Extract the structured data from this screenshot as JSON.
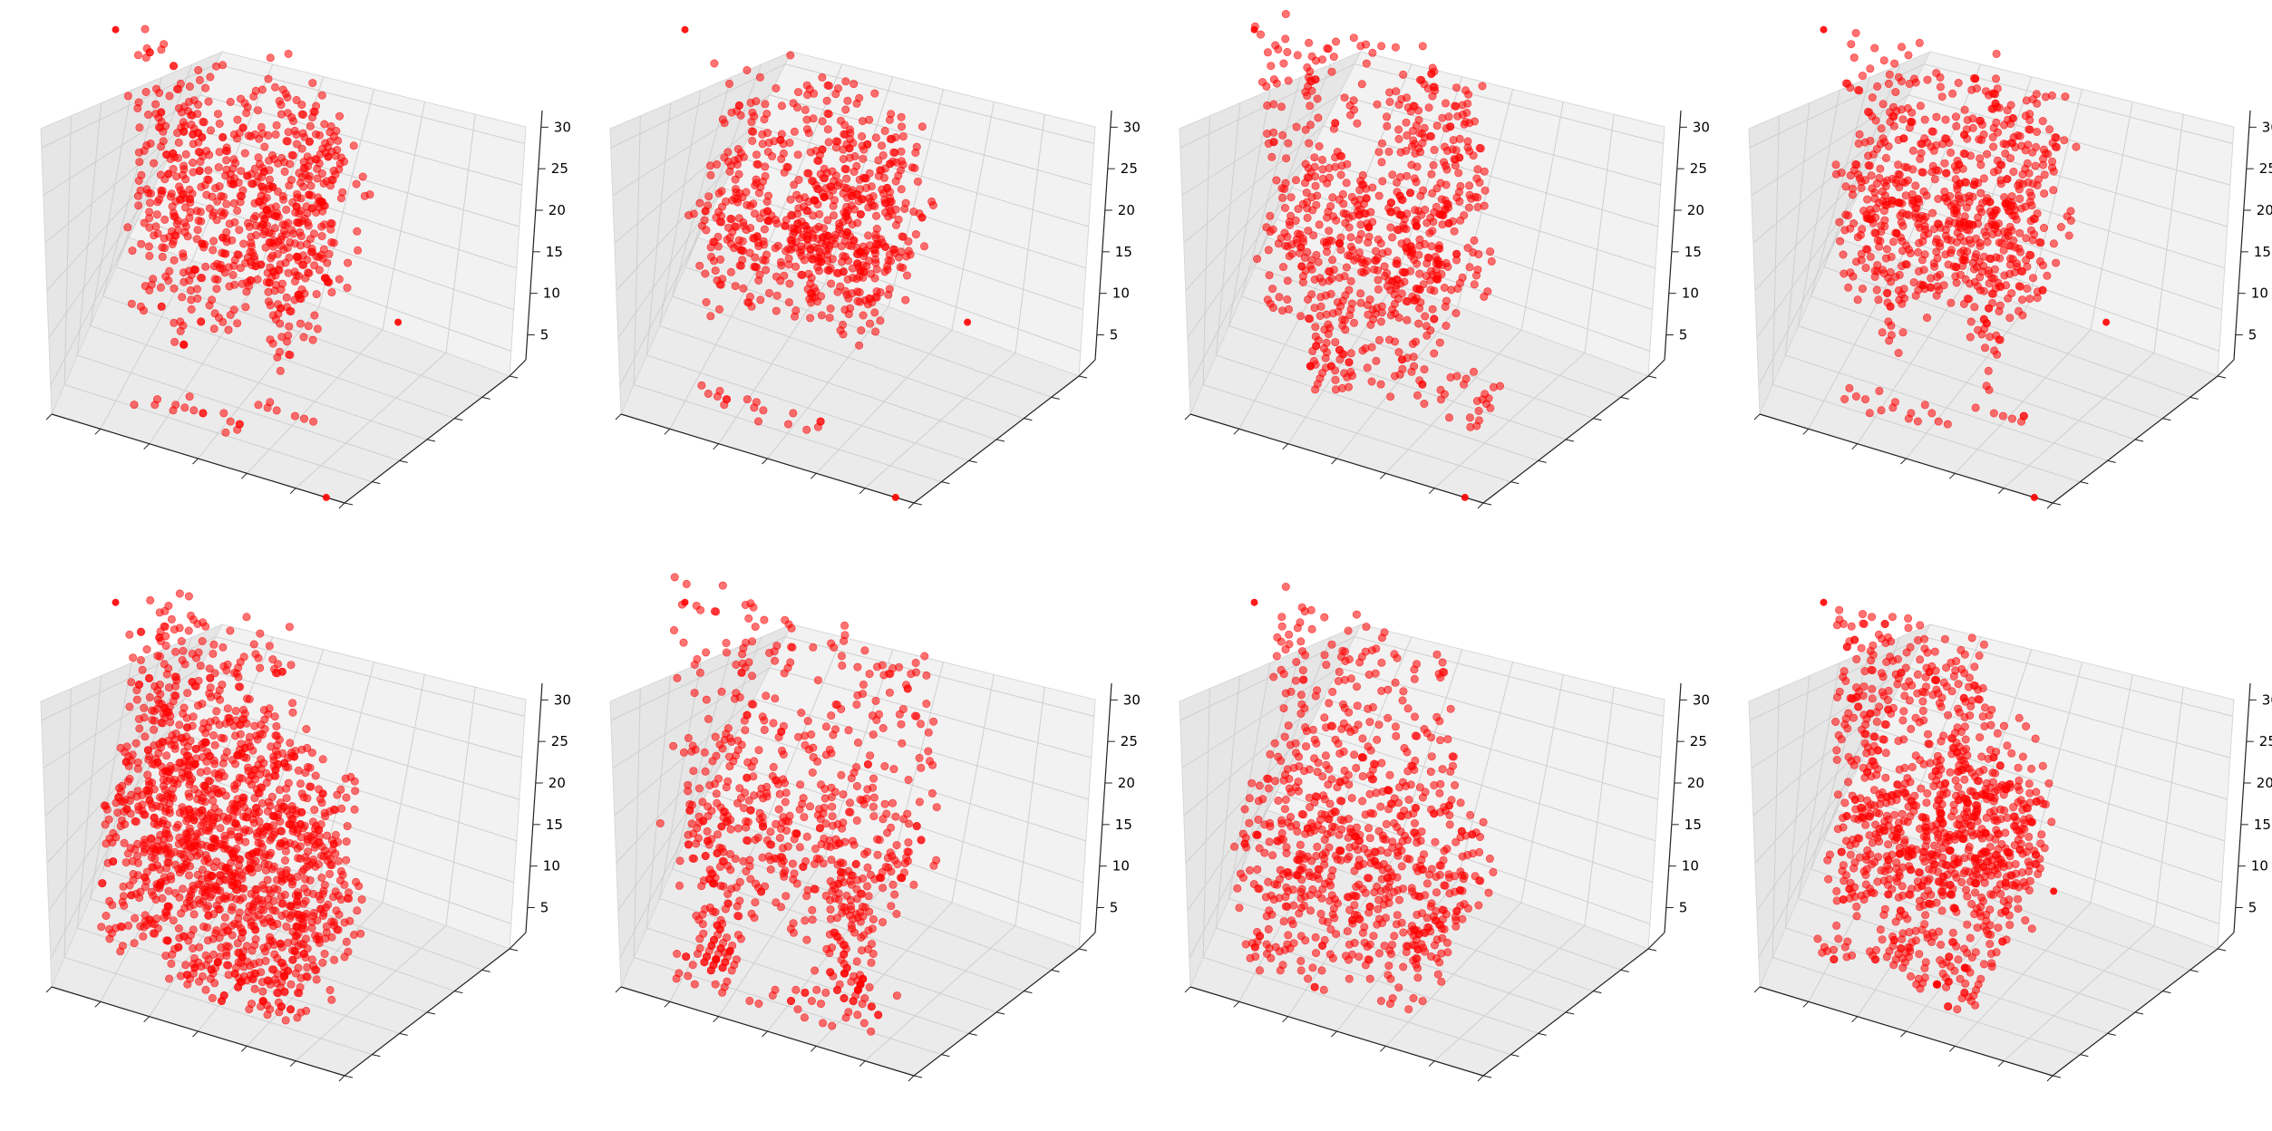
{
  "figure": {
    "background": "#ffffff",
    "rows": 2,
    "cols": 4
  },
  "style": {
    "point_color": "#ff0000",
    "pane_colors": [
      "#f2f2f2",
      "#e6e6e6",
      "#ebebeb"
    ],
    "grid_color": "#cfcfcf"
  },
  "chart_data": [
    {
      "type": "scatter3d",
      "panel": 1,
      "zticks": [
        "5",
        "10",
        "15",
        "20",
        "25",
        "30"
      ],
      "zlim": [
        2,
        32
      ],
      "xticklabels": [],
      "yticklabels": [],
      "clusters": [
        {
          "center": [
            16,
            16,
            17
          ],
          "size": [
            10,
            8,
            7
          ],
          "n": 420
        },
        {
          "center": [
            16,
            22,
            25
          ],
          "size": [
            12,
            3,
            5
          ],
          "n": 120
        },
        {
          "center": [
            22,
            20,
            20
          ],
          "size": [
            6,
            10,
            8
          ],
          "n": 140
        },
        {
          "center": [
            12,
            10,
            9
          ],
          "size": [
            1,
            1,
            4
          ],
          "n": 12
        },
        {
          "center": [
            22,
            12,
            9
          ],
          "size": [
            1,
            1,
            5
          ],
          "n": 14
        },
        {
          "center": [
            14,
            6,
            3
          ],
          "size": [
            6,
            2,
            0.5
          ],
          "n": 16
        },
        {
          "center": [
            23,
            10,
            3
          ],
          "size": [
            3,
            1,
            0.5
          ],
          "n": 7
        }
      ],
      "outliers": [
        [
          0,
          30,
          25
        ],
        [
          30,
          0,
          2
        ],
        [
          30,
          30,
          3
        ]
      ]
    },
    {
      "type": "scatter3d",
      "panel": 2,
      "zticks": [
        "5",
        "10",
        "15",
        "20",
        "25",
        "30"
      ],
      "zlim": [
        2,
        32
      ],
      "xticklabels": [],
      "yticklabels": [],
      "clusters": [
        {
          "center": [
            16,
            16,
            16
          ],
          "size": [
            10,
            8,
            6
          ],
          "n": 420
        },
        {
          "center": [
            16,
            22,
            25
          ],
          "size": [
            10,
            3,
            4
          ],
          "n": 90
        },
        {
          "center": [
            22,
            20,
            19
          ],
          "size": [
            6,
            9,
            7
          ],
          "n": 140
        },
        {
          "center": [
            14,
            6,
            3
          ],
          "size": [
            7,
            2,
            0.5
          ],
          "n": 18
        }
      ],
      "outliers": [
        [
          0,
          30,
          25
        ],
        [
          30,
          0,
          2
        ],
        [
          30,
          30,
          3
        ]
      ]
    },
    {
      "type": "scatter3d",
      "panel": 3,
      "zticks": [
        "5",
        "10",
        "15",
        "20",
        "25",
        "30"
      ],
      "zlim": [
        2,
        32
      ],
      "xticklabels": [],
      "yticklabels": [],
      "clusters": [
        {
          "center": [
            15,
            15,
            14
          ],
          "size": [
            10,
            8,
            5
          ],
          "n": 300
        },
        {
          "center": [
            15,
            22,
            23
          ],
          "size": [
            12,
            3,
            9
          ],
          "n": 200
        },
        {
          "center": [
            22,
            22,
            18
          ],
          "size": [
            5,
            8,
            10
          ],
          "n": 120
        },
        {
          "center": [
            12,
            12,
            6
          ],
          "size": [
            2,
            2,
            6
          ],
          "n": 40
        },
        {
          "center": [
            20,
            14,
            4
          ],
          "size": [
            10,
            5,
            1
          ],
          "n": 60
        }
      ],
      "outliers": [
        [
          0,
          30,
          25
        ],
        [
          30,
          0,
          2
        ]
      ]
    },
    {
      "type": "scatter3d",
      "panel": 4,
      "zticks": [
        "5",
        "10",
        "15",
        "20",
        "25",
        "30"
      ],
      "zlim": [
        2,
        32
      ],
      "xticklabels": [],
      "yticklabels": [],
      "clusters": [
        {
          "center": [
            16,
            16,
            17
          ],
          "size": [
            10,
            8,
            7
          ],
          "n": 420
        },
        {
          "center": [
            16,
            22,
            25
          ],
          "size": [
            12,
            3,
            5
          ],
          "n": 120
        },
        {
          "center": [
            22,
            20,
            20
          ],
          "size": [
            6,
            10,
            8
          ],
          "n": 140
        },
        {
          "center": [
            12,
            10,
            9
          ],
          "size": [
            1,
            1,
            4
          ],
          "n": 12
        },
        {
          "center": [
            22,
            12,
            9
          ],
          "size": [
            1,
            1,
            5
          ],
          "n": 14
        },
        {
          "center": [
            14,
            6,
            3
          ],
          "size": [
            6,
            2,
            0.5
          ],
          "n": 16
        },
        {
          "center": [
            23,
            10,
            3
          ],
          "size": [
            3,
            1,
            0.5
          ],
          "n": 7
        }
      ],
      "outliers": [
        [
          0,
          30,
          25
        ],
        [
          30,
          0,
          2
        ],
        [
          30,
          30,
          3
        ]
      ]
    },
    {
      "type": "scatter3d",
      "panel": 5,
      "zticks": [
        "5",
        "10",
        "15",
        "20",
        "25",
        "30"
      ],
      "zlim": [
        2,
        32
      ],
      "xticklabels": [],
      "yticklabels": [],
      "clusters": [
        {
          "center": [
            16,
            15,
            12
          ],
          "size": [
            12,
            10,
            10
          ],
          "n": 1100
        },
        {
          "center": [
            12,
            24,
            22
          ],
          "size": [
            8,
            4,
            8
          ],
          "n": 220
        },
        {
          "center": [
            18,
            10,
            2
          ],
          "size": [
            6,
            4,
            3
          ],
          "n": 80
        }
      ],
      "outliers": [
        [
          0,
          30,
          25
        ]
      ]
    },
    {
      "type": "scatter3d",
      "panel": 6,
      "zticks": [
        "5",
        "10",
        "15",
        "20",
        "25",
        "30"
      ],
      "zlim": [
        2,
        32
      ],
      "xticklabels": [],
      "yticklabels": [],
      "clusters": [
        {
          "center": [
            15,
            22,
            20
          ],
          "size": [
            14,
            3,
            12
          ],
          "n": 260
        },
        {
          "center": [
            15,
            15,
            12
          ],
          "size": [
            12,
            10,
            4
          ],
          "n": 260
        },
        {
          "center": [
            8,
            10,
            5
          ],
          "size": [
            2,
            2,
            8
          ],
          "n": 70
        },
        {
          "center": [
            22,
            12,
            5
          ],
          "size": [
            2,
            2,
            8
          ],
          "n": 70
        },
        {
          "center": [
            15,
            8,
            1
          ],
          "size": [
            12,
            4,
            1
          ],
          "n": 60
        }
      ],
      "outliers": [
        [
          0,
          30,
          25
        ]
      ]
    },
    {
      "type": "scatter3d",
      "panel": 7,
      "zticks": [
        "5",
        "10",
        "15",
        "20",
        "25",
        "30"
      ],
      "zlim": [
        2,
        32
      ],
      "xticklabels": [],
      "yticklabels": [],
      "clusters": [
        {
          "center": [
            15,
            15,
            11
          ],
          "size": [
            12,
            10,
            4
          ],
          "n": 420
        },
        {
          "center": [
            14,
            22,
            22
          ],
          "size": [
            10,
            3,
            9
          ],
          "n": 200
        },
        {
          "center": [
            16,
            12,
            4
          ],
          "size": [
            8,
            6,
            4
          ],
          "n": 110
        },
        {
          "center": [
            6,
            8,
            3
          ],
          "size": [
            2,
            2,
            1
          ],
          "n": 20
        }
      ],
      "outliers": [
        [
          0,
          30,
          25
        ]
      ]
    },
    {
      "type": "scatter3d",
      "panel": 8,
      "zticks": [
        "5",
        "10",
        "15",
        "20",
        "25",
        "30"
      ],
      "zlim": [
        2,
        32
      ],
      "xticklabels": [],
      "yticklabels": [],
      "clusters": [
        {
          "center": [
            16,
            15,
            12
          ],
          "size": [
            10,
            9,
            5
          ],
          "n": 520
        },
        {
          "center": [
            12,
            22,
            22
          ],
          "size": [
            8,
            3,
            8
          ],
          "n": 240
        },
        {
          "center": [
            20,
            20,
            16
          ],
          "size": [
            5,
            8,
            6
          ],
          "n": 140
        },
        {
          "center": [
            16,
            10,
            3
          ],
          "size": [
            6,
            4,
            3
          ],
          "n": 90
        },
        {
          "center": [
            6,
            8,
            3
          ],
          "size": [
            2,
            2,
            1
          ],
          "n": 12
        }
      ],
      "outliers": [
        [
          0,
          30,
          25
        ],
        [
          30,
          10,
          15
        ]
      ]
    }
  ]
}
